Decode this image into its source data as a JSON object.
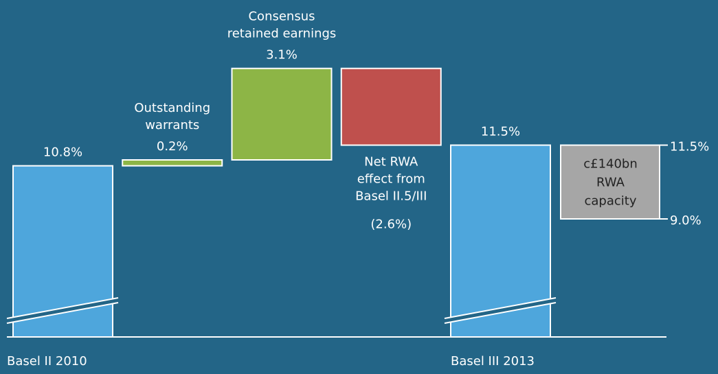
{
  "chart_data": {
    "type": "waterfall",
    "categories": [
      "Basel II 2010",
      null,
      null,
      null,
      "Basel III 2013"
    ],
    "step_labels": [
      null,
      [
        "Outstanding",
        "warrants"
      ],
      [
        "Consensus",
        "retained earnings"
      ],
      [
        "Net RWA",
        "effect from",
        "Basel II.5/III"
      ],
      null
    ],
    "values": [
      10.8,
      0.2,
      3.1,
      -2.6,
      11.5
    ],
    "value_labels": [
      "10.8%",
      "0.2%",
      "3.1%",
      "(2.6%)",
      "11.5%"
    ],
    "totals": [
      true,
      false,
      false,
      false,
      true
    ],
    "colors": [
      "#4ea6dc",
      "#8db546",
      "#8db546",
      "#bf504d",
      "#4ea6dc"
    ],
    "ylim": [
      5,
      14.5
    ],
    "axis_break": true,
    "range_box": {
      "label": [
        "c£140bn",
        "RWA",
        "capacity"
      ],
      "low": 9.0,
      "high": 11.5,
      "low_label": "9.0%",
      "high_label": "11.5%",
      "color": "#a6a6a6"
    }
  }
}
